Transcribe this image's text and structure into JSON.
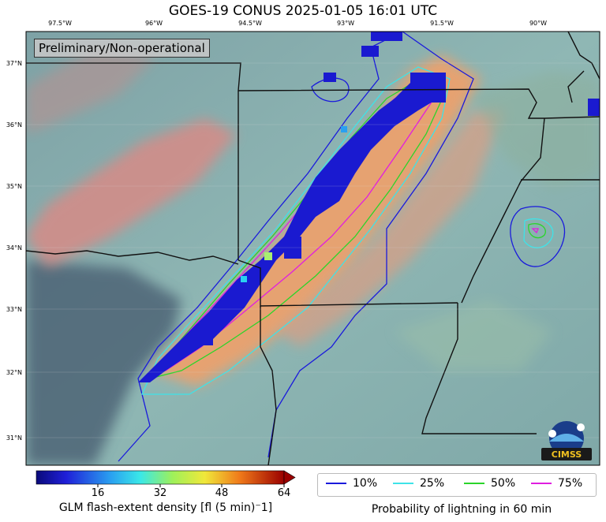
{
  "title": "GOES-19 CONUS 2025-01-05 16:01 UTC",
  "badge": "Preliminary/Non-operational",
  "lon_labels": [
    "97.5°W",
    "96°W",
    "94.5°W",
    "93°W",
    "91.5°W",
    "90°W"
  ],
  "lat_labels": [
    "37°N",
    "36°N",
    "35°N",
    "34°N",
    "33°N",
    "32°N",
    "31°N"
  ],
  "colorbar": {
    "label": "GLM flash-extent density [fl (5 min)⁻1]",
    "ticks": [
      "16",
      "32",
      "48",
      "64"
    ],
    "range": [
      0,
      64
    ]
  },
  "legend": {
    "items": [
      {
        "label": "10%",
        "color": "#1a1adc"
      },
      {
        "label": "25%",
        "color": "#3ee3e8"
      },
      {
        "label": "50%",
        "color": "#2ad52a"
      },
      {
        "label": "75%",
        "color": "#e01ee0"
      }
    ],
    "caption": "Probability of lightning in 60 min"
  },
  "logo_text": "CIMSS"
}
